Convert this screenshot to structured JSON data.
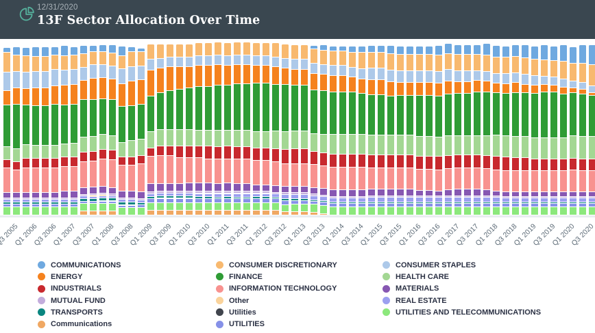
{
  "header": {
    "date": "12/31/2020",
    "title": "13F Sector Allocation Over Time",
    "bg_color": "#3A4750",
    "accent_color": "#55AF9B"
  },
  "chart_data": {
    "type": "bar",
    "subtype": "stacked-100-percent",
    "title": "13F Sector Allocation Over Time",
    "xlabel": "",
    "ylabel": "",
    "grid": false,
    "legend_position": "bottom",
    "x_tick_every": 2,
    "categories": [
      "Q3 2005",
      "Q4 2005",
      "Q1 2006",
      "Q2 2006",
      "Q3 2006",
      "Q4 2006",
      "Q1 2007",
      "Q2 2007",
      "Q3 2007",
      "Q4 2007",
      "Q1 2008",
      "Q2 2008",
      "Q3 2008",
      "Q4 2008",
      "Q1 2009",
      "Q2 2009",
      "Q3 2009",
      "Q4 2009",
      "Q1 2010",
      "Q2 2010",
      "Q3 2010",
      "Q4 2010",
      "Q1 2011",
      "Q2 2011",
      "Q3 2011",
      "Q4 2011",
      "Q1 2012",
      "Q2 2012",
      "Q3 2012",
      "Q4 2012",
      "Q1 2013",
      "Q2 2013",
      "Q3 2013",
      "Q4 2013",
      "Q1 2014",
      "Q2 2014",
      "Q3 2014",
      "Q4 2014",
      "Q1 2015",
      "Q2 2015",
      "Q3 2015",
      "Q4 2015",
      "Q1 2016",
      "Q2 2016",
      "Q3 2016",
      "Q4 2016",
      "Q1 2017",
      "Q2 2017",
      "Q3 2017",
      "Q4 2017",
      "Q1 2018",
      "Q2 2018",
      "Q3 2018",
      "Q4 2018",
      "Q1 2019",
      "Q2 2019",
      "Q3 2019",
      "Q4 2019",
      "Q1 2020",
      "Q2 2020",
      "Q3 2020",
      "Q4 2020"
    ],
    "series": [
      {
        "name": "COMMUNICATIONS",
        "color": "#6FA9E0",
        "values": [
          3,
          5,
          5,
          6,
          6,
          5,
          6,
          5,
          5,
          4,
          4,
          5,
          6,
          3,
          2,
          0,
          0,
          0,
          0,
          0,
          0,
          0,
          0,
          0,
          0,
          0,
          0,
          0,
          0,
          0,
          0,
          0,
          2,
          3,
          3,
          3,
          4,
          4,
          4,
          4,
          5,
          5,
          5,
          5,
          5,
          6,
          6,
          6,
          6,
          6,
          7,
          7,
          7,
          7,
          8,
          8,
          9,
          9,
          10,
          10,
          11,
          12
        ]
      },
      {
        "name": "CONSUMER DISCRETIONARY",
        "color": "#F8B96F",
        "values": [
          12,
          10,
          10,
          9,
          9,
          9,
          9,
          9,
          8,
          8,
          8,
          8,
          8,
          9,
          9,
          9,
          9,
          8,
          8,
          8,
          8,
          8,
          8,
          8,
          8,
          8,
          8,
          8,
          9,
          9,
          9,
          9,
          9,
          9,
          9,
          9,
          9,
          10,
          10,
          10,
          10,
          10,
          10,
          10,
          10,
          10,
          10,
          10,
          10,
          10,
          10,
          10,
          10,
          10,
          10,
          10,
          10,
          10,
          11,
          11,
          12,
          13
        ]
      },
      {
        "name": "CONSUMER STAPLES",
        "color": "#ADC9E9",
        "values": [
          11,
          10,
          10,
          10,
          10,
          10,
          9,
          9,
          8,
          8,
          8,
          8,
          9,
          9,
          8,
          7,
          6,
          6,
          6,
          6,
          6,
          6,
          6,
          6,
          6,
          6,
          6,
          6,
          6,
          6,
          6,
          6,
          6,
          6,
          6,
          6,
          6,
          6,
          7,
          7,
          7,
          7,
          7,
          7,
          7,
          7,
          7,
          7,
          7,
          6,
          6,
          6,
          6,
          6,
          6,
          6,
          5,
          5,
          5,
          4,
          4,
          4
        ]
      },
      {
        "name": "ENERGY",
        "color": "#F5821E",
        "values": [
          9,
          10,
          10,
          11,
          11,
          11,
          12,
          12,
          12,
          13,
          13,
          13,
          14,
          15,
          15,
          16,
          15,
          15,
          14,
          13,
          13,
          13,
          13,
          12,
          12,
          12,
          11,
          11,
          11,
          10,
          10,
          10,
          10,
          10,
          10,
          10,
          9,
          9,
          9,
          9,
          9,
          8,
          8,
          8,
          8,
          8,
          8,
          7,
          7,
          7,
          7,
          6,
          6,
          6,
          5,
          5,
          5,
          4,
          4,
          3,
          3,
          2
        ]
      },
      {
        "name": "FINANCE",
        "color": "#2F9C35",
        "values": [
          25,
          27,
          24,
          24,
          24,
          25,
          24,
          24,
          23,
          23,
          22,
          22,
          22,
          21,
          21,
          22,
          23,
          24,
          25,
          26,
          27,
          27,
          28,
          28,
          29,
          29,
          30,
          30,
          29,
          29,
          28,
          28,
          27,
          27,
          26,
          26,
          26,
          25,
          25,
          25,
          24,
          24,
          24,
          25,
          25,
          25,
          26,
          26,
          26,
          27,
          27,
          26,
          26,
          27,
          27,
          27,
          28,
          28,
          27,
          26,
          26,
          25
        ]
      },
      {
        "name": "HEALTH CARE",
        "color": "#A3D793",
        "values": [
          8,
          8,
          8,
          8,
          8,
          8,
          8,
          8,
          9,
          9,
          9,
          9,
          9,
          10,
          10,
          10,
          10,
          10,
          10,
          10,
          10,
          10,
          10,
          10,
          10,
          10,
          10,
          10,
          11,
          11,
          11,
          11,
          11,
          11,
          12,
          12,
          12,
          12,
          12,
          12,
          12,
          12,
          12,
          12,
          12,
          12,
          12,
          12,
          12,
          12,
          12,
          13,
          13,
          13,
          13,
          13,
          13,
          13,
          13,
          14,
          14,
          14
        ]
      },
      {
        "name": "INDUSTRIALS",
        "color": "#C8292E",
        "values": [
          5,
          5,
          6,
          6,
          6,
          6,
          6,
          6,
          6,
          6,
          6,
          6,
          5,
          5,
          5,
          5,
          6,
          6,
          7,
          7,
          7,
          8,
          8,
          8,
          8,
          8,
          8,
          8,
          8,
          9,
          9,
          9,
          8,
          8,
          8,
          8,
          8,
          8,
          8,
          8,
          8,
          8,
          8,
          8,
          8,
          8,
          8,
          8,
          8,
          8,
          8,
          8,
          8,
          8,
          8,
          7,
          7,
          7,
          7,
          7,
          7,
          7
        ]
      },
      {
        "name": "INFORMATION TECHNOLOGY",
        "color": "#F8928F",
        "values": [
          15,
          14,
          15,
          15,
          15,
          15,
          15,
          15,
          16,
          16,
          17,
          17,
          16,
          16,
          17,
          17,
          17,
          17,
          16,
          16,
          16,
          15,
          15,
          15,
          15,
          15,
          15,
          15,
          15,
          14,
          14,
          14,
          14,
          14,
          14,
          14,
          14,
          14,
          13,
          13,
          13,
          13,
          13,
          13,
          13,
          13,
          13,
          13,
          13,
          13,
          13,
          13,
          13,
          13,
          13,
          13,
          13,
          13,
          13,
          13,
          13,
          13
        ]
      },
      {
        "name": "MATERIALS",
        "color": "#8757B2",
        "values": [
          3,
          3,
          3,
          3,
          3,
          3,
          4,
          4,
          4,
          4,
          4,
          4,
          4,
          4,
          4,
          5,
          5,
          5,
          5,
          5,
          5,
          5,
          5,
          5,
          5,
          5,
          4,
          4,
          4,
          4,
          4,
          4,
          4,
          4,
          4,
          4,
          4,
          4,
          4,
          4,
          4,
          4,
          4,
          3,
          3,
          3,
          4,
          4,
          4,
          4,
          4,
          3,
          3,
          3,
          3,
          3,
          3,
          3,
          3,
          3,
          3,
          3
        ]
      },
      {
        "name": "MUTUAL FUND",
        "color": "#C3ADDC",
        "values": [
          1,
          1,
          1,
          1,
          1,
          1,
          1,
          1,
          1,
          1,
          1,
          1,
          1,
          1,
          1,
          1,
          1,
          1,
          1,
          1,
          1,
          1,
          1,
          1,
          1,
          1,
          1,
          1,
          1,
          1,
          1,
          1,
          1,
          1,
          1,
          1,
          1,
          1,
          1,
          1,
          1,
          1,
          1,
          1,
          1,
          1,
          1,
          1,
          1,
          1,
          1,
          1,
          1,
          1,
          1,
          1,
          1,
          1,
          1,
          1,
          1,
          1
        ]
      },
      {
        "name": "Other",
        "color": "#FAD39B",
        "values": [
          0,
          0,
          0,
          0,
          0,
          0,
          0,
          0,
          0,
          0.5,
          0.5,
          0,
          0,
          0,
          0,
          0,
          0,
          0,
          0,
          0,
          0.5,
          0.5,
          0.5,
          0.5,
          0.5,
          0.5,
          0.5,
          0.5,
          0,
          0,
          0,
          0,
          0,
          0,
          0,
          0,
          0,
          0,
          0,
          0,
          0,
          0,
          0,
          0,
          0,
          0,
          0,
          0,
          0,
          0,
          0,
          0,
          0,
          0,
          0,
          0,
          0,
          0,
          0,
          0,
          0,
          0
        ]
      },
      {
        "name": "REAL ESTATE",
        "color": "#9CA0F0",
        "values": [
          1.5,
          1.5,
          1.5,
          1.5,
          1.5,
          1.5,
          1.5,
          1.5,
          1.5,
          1.5,
          1.5,
          1.5,
          1.5,
          1.5,
          1.5,
          2,
          2,
          2,
          2,
          2,
          2,
          2,
          2,
          2,
          2,
          2,
          2,
          2,
          2,
          2.5,
          2.5,
          2.5,
          2.5,
          2.5,
          2.5,
          2.5,
          2.5,
          2.5,
          3,
          3,
          3,
          3,
          3,
          3,
          3,
          3,
          3,
          3,
          3,
          3,
          3,
          3,
          2.5,
          2.5,
          2.5,
          2.5,
          2.5,
          2.5,
          2.5,
          2.5,
          2.5,
          2.5
        ]
      },
      {
        "name": "TRANSPORTS",
        "color": "#0A8680",
        "values": [
          1.5,
          1.5,
          1.5,
          1.5,
          1.5,
          1.5,
          1.5,
          1.5,
          1.5,
          1.5,
          1.5,
          1.5,
          1.5,
          1.5,
          1.5,
          1.2,
          1.2,
          1.2,
          1.2,
          1.2,
          1.2,
          1.2,
          1.2,
          1.2,
          1.2,
          1.2,
          1.2,
          1.2,
          1.2,
          1.2,
          1.2,
          1.2,
          0.8,
          0.8,
          0.8,
          0.8,
          0.8,
          0.8,
          0.8,
          0.8,
          0.8,
          0.8,
          0.8,
          0.8,
          0.8,
          0.8,
          0.8,
          0.8,
          0.8,
          0.8,
          0.8,
          0.8,
          0.8,
          0.8,
          0.8,
          0.8,
          0.8,
          0.8,
          0.8,
          0.8,
          0.8,
          0.8
        ]
      },
      {
        "name": "Utilities",
        "color": "#41454D",
        "values": [
          0,
          0,
          0,
          0,
          0,
          0,
          0,
          0,
          0,
          0,
          0.4,
          0.4,
          0.4,
          0.4,
          0,
          0,
          0.4,
          0.4,
          0.4,
          0.4,
          0,
          0,
          0,
          0,
          0,
          0,
          0,
          0,
          0,
          0,
          0,
          0,
          0,
          0,
          0,
          0,
          0,
          0,
          0,
          0,
          0,
          0,
          0,
          0,
          0,
          0,
          0,
          0,
          0,
          0,
          0,
          0,
          0,
          0,
          0,
          0,
          0,
          0,
          0,
          0,
          0,
          0
        ]
      },
      {
        "name": "UTILITIES",
        "color": "#8691E8",
        "values": [
          1.5,
          1.5,
          1.5,
          1.5,
          1.5,
          1.5,
          1.5,
          1.5,
          1.5,
          1.5,
          1.5,
          1.5,
          1.5,
          1.5,
          1.5,
          2.5,
          2.5,
          2.5,
          2.5,
          2.5,
          2.5,
          2.5,
          2.5,
          2.5,
          2.5,
          2.5,
          2.5,
          2.5,
          2.5,
          2.5,
          2.5,
          2.5,
          2,
          2,
          2,
          2,
          2,
          2,
          2,
          2,
          2,
          2,
          2,
          2,
          2,
          2,
          2,
          2,
          2,
          2,
          2,
          2,
          2,
          2,
          2,
          2,
          2,
          2,
          2,
          2,
          2,
          2
        ]
      },
      {
        "name": "UTILITIES AND TELECOMMUNICATIONS",
        "color": "#8CE87C",
        "values": [
          5,
          5,
          5,
          5,
          5,
          5,
          5,
          5,
          4.5,
          4.5,
          4.5,
          4.5,
          4.5,
          4.5,
          4.5,
          4.5,
          4.5,
          4.5,
          4.5,
          4.5,
          4.5,
          4.5,
          4.5,
          4.5,
          4.5,
          4.5,
          4.5,
          4.5,
          4.5,
          4.5,
          4.5,
          4.5,
          5,
          5,
          5,
          5,
          5,
          5,
          5,
          5,
          5,
          5,
          5,
          5,
          5,
          5,
          5,
          5,
          5,
          5,
          5,
          5,
          5,
          5,
          5,
          5,
          5,
          5,
          5,
          5,
          5,
          5
        ]
      },
      {
        "name": "Communications",
        "color": "#F0A863",
        "values": [
          0,
          0,
          0,
          0,
          0,
          0,
          0,
          0,
          2.5,
          2.5,
          2.5,
          2.5,
          0,
          0,
          0,
          3,
          3,
          3,
          3,
          3,
          3,
          3,
          3,
          3,
          3,
          3,
          3,
          3,
          3,
          2,
          2,
          2,
          1.5,
          1,
          0,
          0,
          0,
          0,
          0,
          0,
          0,
          0,
          0,
          0,
          0,
          0,
          0,
          0,
          0,
          0,
          0,
          0,
          0,
          0,
          0,
          0,
          0,
          0,
          0,
          0,
          0,
          0
        ]
      }
    ]
  },
  "legend": {
    "items": [
      {
        "label": "COMMUNICATIONS",
        "color": "#6FA9E0"
      },
      {
        "label": "CONSUMER DISCRETIONARY",
        "color": "#F8B96F"
      },
      {
        "label": "CONSUMER STAPLES",
        "color": "#ADC9E9"
      },
      {
        "label": "ENERGY",
        "color": "#F5821E"
      },
      {
        "label": "FINANCE",
        "color": "#2F9C35"
      },
      {
        "label": "HEALTH CARE",
        "color": "#A3D793"
      },
      {
        "label": "INDUSTRIALS",
        "color": "#C8292E"
      },
      {
        "label": "INFORMATION TECHNOLOGY",
        "color": "#F8928F"
      },
      {
        "label": "MATERIALS",
        "color": "#8757B2"
      },
      {
        "label": "MUTUAL FUND",
        "color": "#C3ADDC"
      },
      {
        "label": "Other",
        "color": "#FAD39B"
      },
      {
        "label": "REAL ESTATE",
        "color": "#9CA0F0"
      },
      {
        "label": "TRANSPORTS",
        "color": "#0A8680"
      },
      {
        "label": "Utilities",
        "color": "#41454D"
      },
      {
        "label": "UTILITIES AND TELECOMMUNICATIONS",
        "color": "#8CE87C"
      },
      {
        "label": "Communications",
        "color": "#F0A863"
      },
      {
        "label": "UTILITIES",
        "color": "#8691E8"
      }
    ]
  }
}
